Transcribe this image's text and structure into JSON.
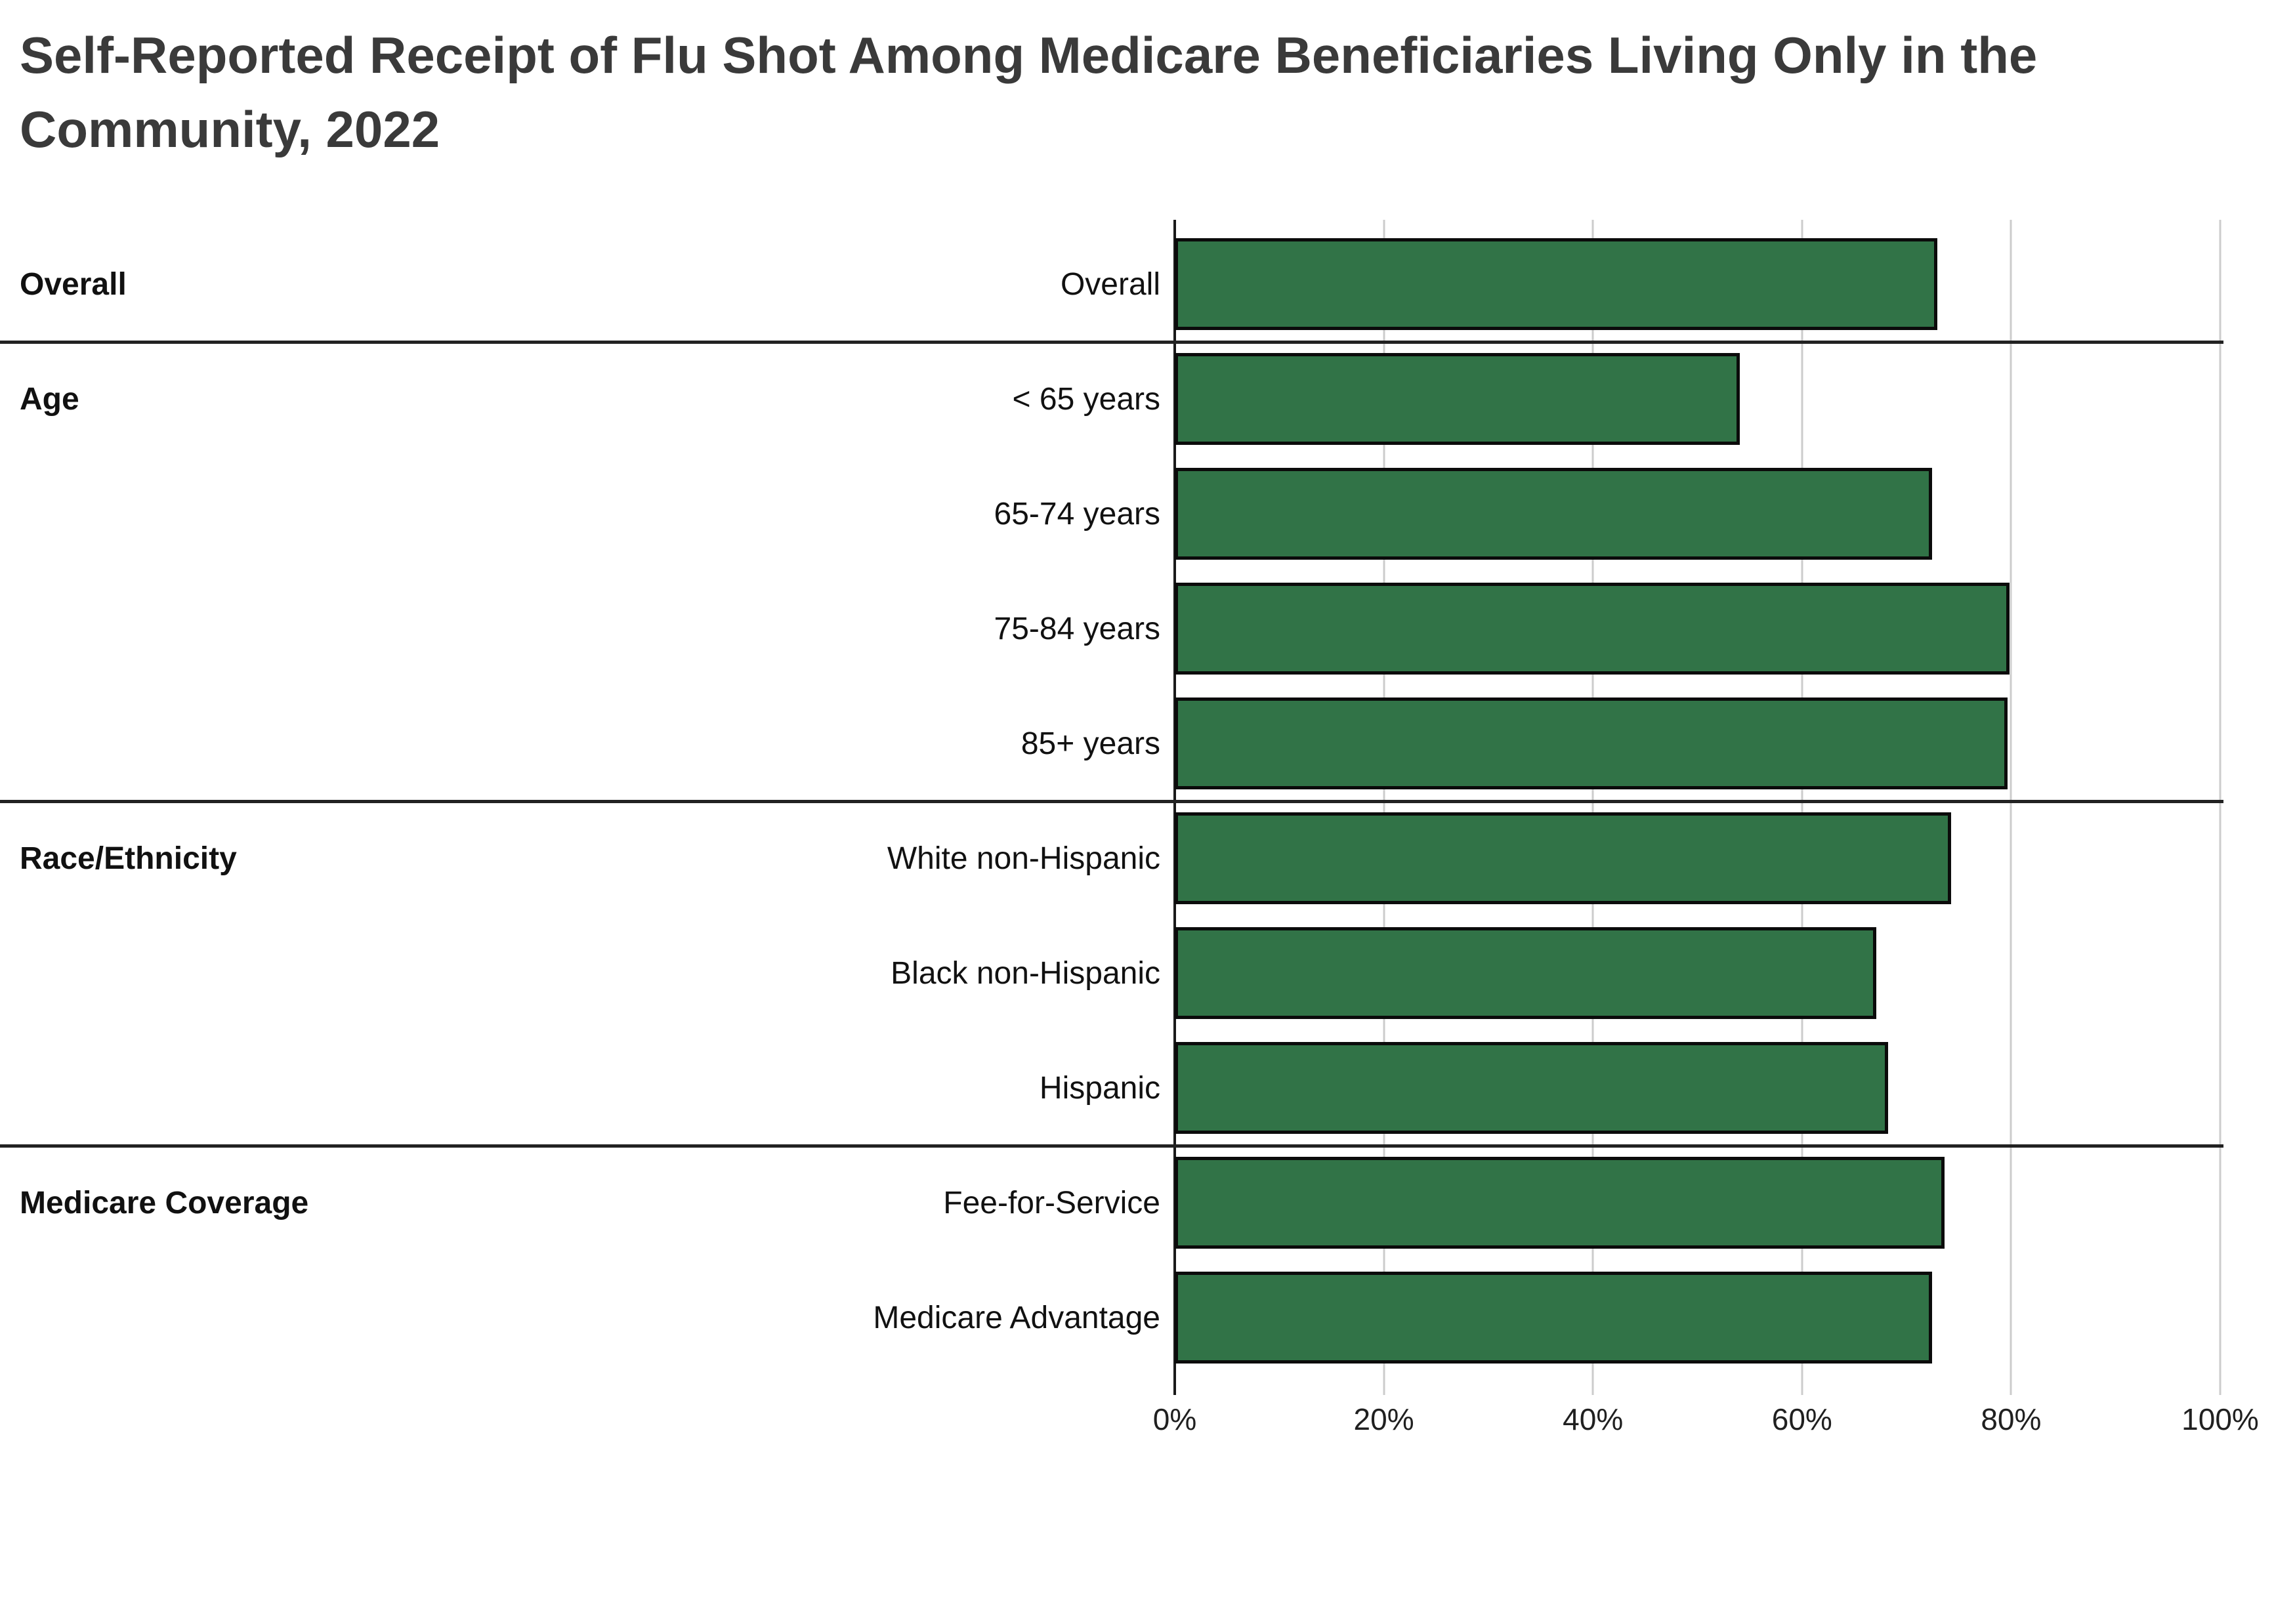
{
  "title": "Self-Reported Receipt of Flu Shot Among Medicare Beneficiaries Living Only in the Community, 2022",
  "colors": {
    "bar_fill": "#317347",
    "bar_border": "#0b0b0b",
    "gridline": "#cccccc",
    "axis_line": "#1a1a1a",
    "divider": "#222222",
    "title_text": "#3a3a3a",
    "label_text": "#111111"
  },
  "chart_data": {
    "type": "bar",
    "orientation": "horizontal",
    "title": "Self-Reported Receipt of Flu Shot Among Medicare Beneficiaries Living Only in the Community, 2022",
    "xlabel": "",
    "ylabel": "",
    "unit": "%",
    "xlim": [
      0,
      100
    ],
    "grid": "vertical gridlines at 20% intervals, light gray; 0% axis line black",
    "legend": "none",
    "x_ticks": [
      "0%",
      "20%",
      "40%",
      "60%",
      "80%",
      "100%"
    ],
    "x_tick_values": [
      0,
      20,
      40,
      60,
      80,
      100
    ],
    "groups": [
      {
        "label": "Overall",
        "rows": [
          {
            "label": "Overall",
            "value": 72.7
          }
        ]
      },
      {
        "label": "Age",
        "rows": [
          {
            "label": "< 65 years",
            "value": 53.9
          },
          {
            "label": "65-74 years",
            "value": 72.2
          },
          {
            "label": "75-84 years",
            "value": 79.6
          },
          {
            "label": "85+ years",
            "value": 79.4
          }
        ]
      },
      {
        "label": "Race/Ethnicity",
        "rows": [
          {
            "label": "White non-Hispanic",
            "value": 74.0
          },
          {
            "label": "Black non-Hispanic",
            "value": 66.9
          },
          {
            "label": "Hispanic",
            "value": 68.0
          }
        ]
      },
      {
        "label": "Medicare Coverage",
        "rows": [
          {
            "label": "Fee-for-Service",
            "value": 73.4
          },
          {
            "label": "Medicare Advantage",
            "value": 72.2
          }
        ]
      }
    ]
  }
}
